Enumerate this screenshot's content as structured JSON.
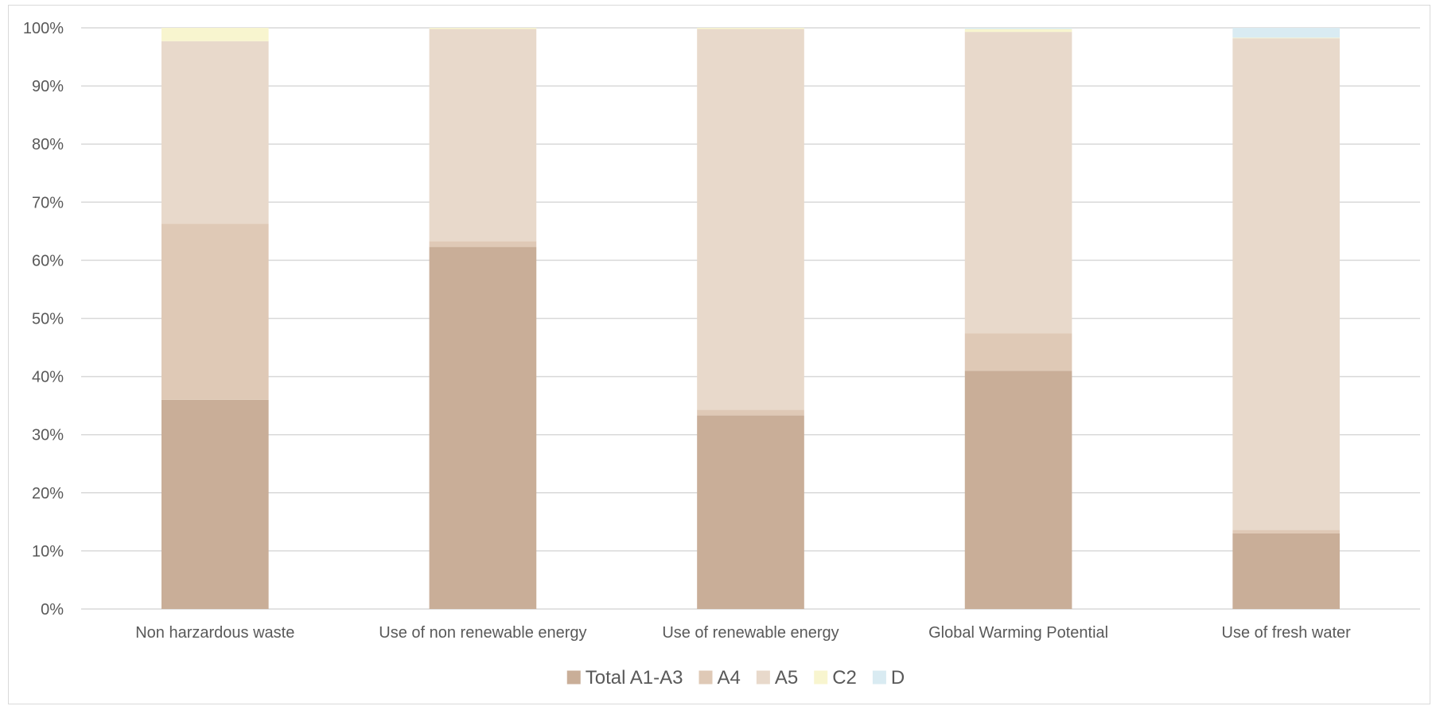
{
  "chart_data": {
    "type": "bar",
    "stacked": "percent",
    "title": "",
    "xlabel": "",
    "ylabel": "",
    "ylim": [
      0,
      100
    ],
    "yticks": [
      "0%",
      "10%",
      "20%",
      "30%",
      "40%",
      "50%",
      "60%",
      "70%",
      "80%",
      "90%",
      "100%"
    ],
    "grid": true,
    "legend_position": "bottom",
    "categories": [
      "Non harzardous waste",
      "Use of non renewable energy",
      "Use of renewable energy",
      "Global Warming Potential",
      "Use of fresh water"
    ],
    "series": [
      {
        "name": "Total A1-A3",
        "color": "#c9ae98",
        "values": [
          36.0,
          62.3,
          33.3,
          41.0,
          13.0
        ]
      },
      {
        "name": "A4",
        "color": "#dfc9b6",
        "values": [
          30.3,
          1.0,
          1.0,
          6.4,
          0.6
        ]
      },
      {
        "name": "A5",
        "color": "#e8d9cb",
        "values": [
          31.4,
          36.5,
          65.5,
          51.9,
          84.6
        ]
      },
      {
        "name": "C2",
        "color": "#f8f5cf",
        "values": [
          2.3,
          0.2,
          0.2,
          0.5,
          0.1
        ]
      },
      {
        "name": "D",
        "color": "#d9ebf2",
        "values": [
          0.0,
          0.0,
          0.0,
          0.2,
          1.7
        ]
      }
    ]
  }
}
